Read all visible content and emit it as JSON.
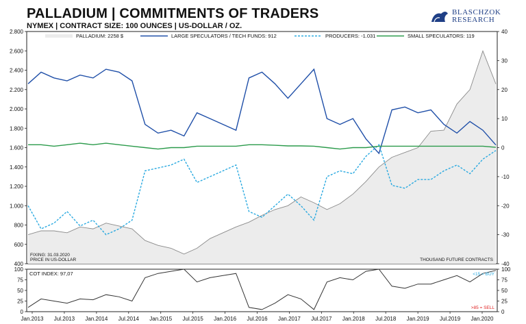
{
  "header": {
    "title": "PALLADIUM | COMMITMENTS OF TRADERS",
    "subtitle": "NYMEX | CONTRACT SIZE: 100 OUNCES | US-DOLLAR / OZ."
  },
  "logo": {
    "line1": "BLASCHZOK",
    "line2": "RESEARCH",
    "icon": "bull-bear-icon",
    "color": "#1f3f86"
  },
  "chart_data": [
    {
      "type": "line",
      "title": "",
      "legend_position": "top",
      "x_start": "2013-01",
      "x_step": "quarter",
      "x_labels": [
        "Jan.2013",
        "Jul.2013",
        "Jan.2014",
        "Jul.2014",
        "Jan.2015",
        "Jul.2015",
        "Jan.2016",
        "Jul.2016",
        "Jan.2017",
        "Jul.2017",
        "Jan.2018",
        "Jul.2018",
        "Jan.2019",
        "Jul.2019",
        "Jan.2020"
      ],
      "y_left": {
        "label": "PRICE IN US-DOLLAR",
        "min": 400,
        "max": 2800,
        "ticks": [
          "400",
          "600",
          "800",
          "1.000",
          "1.200",
          "1.400",
          "1.600",
          "1.800",
          "2.000",
          "2.200",
          "2.400",
          "2.600",
          "2.800"
        ]
      },
      "y_right": {
        "label": "THOUSAND FUTURE CONTRACTS",
        "min": -40,
        "max": 40,
        "ticks": [
          "-40",
          "-30",
          "-20",
          "-10",
          "0",
          "10",
          "20",
          "30",
          "40"
        ]
      },
      "notes": {
        "fixing": "FIXING: 31.03.2020",
        "price_unit": "PRICE IN US-DOLLAR",
        "contracts_unit": "THOUSAND FUTURE CONTRACTS"
      },
      "series": [
        {
          "name": "PALLADIUM: 2258 $",
          "axis": "left",
          "style": "area",
          "color": "#8a8a8a",
          "fill": "#ececec",
          "values": [
            700,
            740,
            740,
            720,
            780,
            760,
            820,
            790,
            760,
            640,
            590,
            560,
            500,
            560,
            660,
            720,
            780,
            830,
            900,
            960,
            1000,
            1090,
            1030,
            960,
            1020,
            1120,
            1250,
            1400,
            1500,
            1550,
            1600,
            1770,
            1780,
            2050,
            2200,
            2600,
            2258
          ]
        },
        {
          "name": "LARGE SPECULATORS / TECH FUNDS: 912",
          "axis": "right",
          "style": "solid",
          "color": "#1f4fa8",
          "values": [
            22,
            26,
            24,
            23,
            25,
            24,
            27,
            26,
            23,
            8,
            5,
            6,
            4,
            12,
            10,
            8,
            6,
            24,
            26,
            22,
            17,
            22,
            27,
            10,
            8,
            10,
            3,
            -2,
            13,
            14,
            12,
            13,
            8,
            5,
            9,
            6,
            0.9
          ]
        },
        {
          "name": "PRODUCERS: -1.031",
          "axis": "right",
          "style": "dashed",
          "color": "#29a9e0",
          "values": [
            -20,
            -28,
            -26,
            -22,
            -27,
            -25,
            -30,
            -28,
            -25,
            -8,
            -7,
            -6,
            -4,
            -12,
            -10,
            -8,
            -6,
            -22,
            -24,
            -20,
            -16,
            -20,
            -25,
            -10,
            -8,
            -9,
            -3,
            1,
            -13,
            -14,
            -11,
            -11,
            -8,
            -6,
            -9,
            -4,
            -1
          ]
        },
        {
          "name": "SMALL SPECULATORS: 119",
          "axis": "right",
          "style": "solid",
          "color": "#2a9a4a",
          "values": [
            1,
            1,
            0.5,
            1,
            1.5,
            1,
            1.5,
            1,
            0.5,
            0,
            -0.5,
            0,
            0,
            0.5,
            0.5,
            0.5,
            0.5,
            1,
            1,
            0.8,
            0.6,
            0.6,
            0.5,
            0,
            -0.5,
            0,
            0,
            0.5,
            0.5,
            0.5,
            0.5,
            0.5,
            0.5,
            0.5,
            0.5,
            0.5,
            0.1
          ]
        }
      ]
    },
    {
      "type": "line",
      "title": "",
      "legend": "COT INDEX: 97,07",
      "buy_label": "<15 = BUY",
      "sell_label": ">85 = SELL",
      "buy_color": "#29a9e0",
      "sell_color": "#e02424",
      "y": {
        "min": 0,
        "max": 100,
        "ticks": [
          "0",
          "25",
          "50",
          "75",
          "100"
        ]
      },
      "series": [
        {
          "name": "COT INDEX",
          "color": "#333333",
          "values": [
            10,
            30,
            25,
            20,
            30,
            28,
            40,
            35,
            25,
            80,
            90,
            95,
            100,
            70,
            80,
            85,
            90,
            10,
            5,
            20,
            40,
            30,
            5,
            70,
            80,
            75,
            95,
            100,
            60,
            55,
            65,
            65,
            75,
            85,
            70,
            90,
            97.07
          ]
        }
      ]
    }
  ]
}
